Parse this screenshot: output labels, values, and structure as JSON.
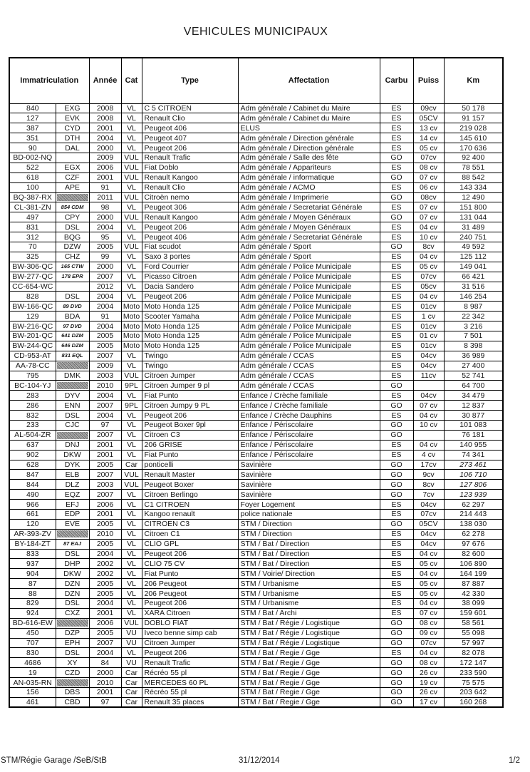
{
  "title": "VEHICULES MUNICIPAUX",
  "table": {
    "headers": [
      "Immatriculation",
      "Année",
      "Cat",
      "Type",
      "Affectation",
      "Carbu",
      "Puiss",
      "Km"
    ],
    "row_format": [
      "immatriculation",
      "old_plate_or_code",
      "annee",
      "cat",
      "type",
      "affectation",
      "carbu",
      "puiss",
      "km",
      "flags: old=small-italic-code, redact=grey-redaction-block, kmi=italic-km"
    ],
    "rows": [
      [
        "840",
        "EXG",
        "2008",
        "VL",
        "C 5 CITROEN",
        "Adm générale / Cabinet du Maire",
        "ES",
        "09cv",
        "50 178",
        ""
      ],
      [
        "127",
        "EVK",
        "2008",
        "VL",
        "Renault Clio",
        "Adm générale / Cabinet du Maire",
        "ES",
        "05CV",
        "91 157",
        ""
      ],
      [
        "387",
        "CYD",
        "2001",
        "VL",
        "Peugeot 406",
        "ELUS",
        "ES",
        "13 cv",
        "219 028",
        ""
      ],
      [
        "351",
        "DTH",
        "2004",
        "VL",
        "Peugeot 407",
        "Adm générale / Direction générale",
        "ES",
        "14 cv",
        "145 610",
        ""
      ],
      [
        "90",
        "DAL",
        "2000",
        "VL",
        "Peugeot 206",
        "Adm générale / Direction générale",
        "ES",
        "05 cv",
        "170 636",
        ""
      ],
      [
        "BD-002-NQ",
        "",
        "2009",
        "VUL",
        "Renault Trafic",
        "Adm générale / Salle des fête",
        "GO",
        "07cv",
        "92 400",
        ""
      ],
      [
        "522",
        "EGX",
        "2006",
        "VUL",
        "Fiat Doblo",
        "Adm générale / Appariteurs",
        "ES",
        "08 cv",
        "78 551",
        ""
      ],
      [
        "618",
        "CZF",
        "2001",
        "VUL",
        "Renault Kangoo",
        "Adm générale / informatique",
        "GO",
        "07 cv",
        "88 542",
        ""
      ],
      [
        "100",
        "APE",
        "91",
        "VL",
        "Renault Clio",
        "Adm générale / ACMO",
        "ES",
        "06 cv",
        "143 334",
        ""
      ],
      [
        "BQ-387-RX",
        "",
        "2011",
        "VUL",
        "Citroën nemo",
        "Adm générale / Imprimerie",
        "GO",
        "08cv",
        "12 490",
        "redact"
      ],
      [
        "CL-381-ZN",
        "854 CDM",
        "98",
        "VL",
        "Peugeot 306",
        "Adm générale / Secretariat Générale",
        "ES",
        "07 cv",
        "151 800",
        "old"
      ],
      [
        "497",
        "CPY",
        "2000",
        "VUL",
        "Renault Kangoo",
        "Adm générale / Moyen Généraux",
        "GO",
        "07 cv",
        "131 044",
        ""
      ],
      [
        "831",
        "DSL",
        "2004",
        "VL",
        "Peugeot 206",
        "Adm générale / Moyen Généraux",
        "ES",
        "04 cv",
        "31 489",
        ""
      ],
      [
        "312",
        "BQG",
        "95",
        "VL",
        "Peugeot 406",
        "Adm générale / Secretariat Générale",
        "ES",
        "10 cv",
        "240 751",
        ""
      ],
      [
        "70",
        "DZW",
        "2005",
        "VUL",
        "Fiat scudot",
        "Adm générale / Sport",
        "GO",
        "8cv",
        "49 592",
        ""
      ],
      [
        "325",
        "CHZ",
        "99",
        "VL",
        "Saxo 3 portes",
        "Adm générale / Sport",
        "ES",
        "04 cv",
        "125 112",
        ""
      ],
      [
        "BW-306-QC",
        "165 CTW",
        "2000",
        "VL",
        "Ford Courrier",
        "Adm générale / Police Municipale",
        "ES",
        "05 cv",
        "149 041",
        "old"
      ],
      [
        "BW-277-QC",
        "178 EPR",
        "2007",
        "VL",
        "Picasso Citroen",
        "Adm générale / Police Municipale",
        "ES",
        "07cv",
        "66 421",
        "old"
      ],
      [
        "CC-654-WC",
        "",
        "2012",
        "VL",
        "Dacia Sandero",
        "Adm générale / Police Municipale",
        "ES",
        "05cv",
        "31 516",
        ""
      ],
      [
        "828",
        "DSL",
        "2004",
        "VL",
        "Peugeot 206",
        "Adm générale / Police Municipale",
        "ES",
        "04 cv",
        "146 254",
        ""
      ],
      [
        "BW-166-QC",
        "89 DVD",
        "2004",
        "Moto",
        "Moto Honda 125",
        "Adm générale / Police Municipale",
        "ES",
        "01cv",
        "8 987",
        "old"
      ],
      [
        "129",
        "BDA",
        "91",
        "Moto",
        "Scooter Yamaha",
        "Adm générale / Police Municipale",
        "ES",
        "1 cv",
        "22 342",
        ""
      ],
      [
        "BW-216-QC",
        "97 DVD",
        "2004",
        "Moto",
        "Moto Honda 125",
        "Adm générale / Police Municipale",
        "ES",
        "01cv",
        "3 216",
        "old"
      ],
      [
        "BW-201-QC",
        "641 DZM",
        "2005",
        "Moto",
        "Moto Honda 125",
        "Adm générale / Police Municipale",
        "ES",
        "01 cv",
        "7 501",
        "old"
      ],
      [
        "BW-244-QC",
        "646 DZM",
        "2005",
        "Moto",
        "Moto Honda 125",
        "Adm générale / Police Municipale",
        "ES",
        "01cv",
        "8 398",
        "old"
      ],
      [
        "CD-953-AT",
        "831 EQL",
        "2007",
        "VL",
        "Twingo",
        "Adm générale / CCAS",
        "ES",
        "04cv",
        "36 989",
        "old"
      ],
      [
        "AA-78-CC",
        "",
        "2009",
        "VL",
        "Twingo",
        "Adm générale / CCAS",
        "ES",
        "04cv",
        "27 400",
        "redact"
      ],
      [
        "795",
        "DMK",
        "2003",
        "VUL",
        "Citroen Jumper",
        "Adm générale / CCAS",
        "ES",
        "11cv",
        "52 741",
        ""
      ],
      [
        "BC-104-YJ",
        "",
        "2010",
        "9PL",
        "Citroen Jumper 9 pl",
        "Adm générale / CCAS",
        "GO",
        "",
        "64 700",
        "redact"
      ],
      [
        "283",
        "DYV",
        "2004",
        "VL",
        "Fiat Punto",
        "Enfance / Crèche familiale",
        "ES",
        "04cv",
        "34 479",
        ""
      ],
      [
        "286",
        "ENN",
        "2007",
        "9PL",
        "Citroen Jumpy 9 PL",
        "Enfance / Crèche familiale",
        "GO",
        "07 cv",
        "12 837",
        ""
      ],
      [
        "832",
        "DSL",
        "2004",
        "VL",
        "Peugeot 206",
        "Enfance / Crèche  Dauphins",
        "ES",
        "04 cv",
        "30 877",
        ""
      ],
      [
        "233",
        "CJC",
        "97",
        "VL",
        "Peugeot Boxer 9pl",
        "Enfance / Périscolaire",
        "GO",
        "10 cv",
        "101 083",
        ""
      ],
      [
        "AL-504-ZR",
        "",
        "2007",
        "VL",
        "Citroen C3",
        "Enfance / Périscolaire",
        "GO",
        "",
        "76 181",
        "redact"
      ],
      [
        "637",
        "DNJ",
        "2001",
        "VL",
        "206 GRISE",
        "Enfance / Périscolaire",
        "ES",
        "04 cv",
        "140 955",
        ""
      ],
      [
        "902",
        "DKW",
        "2001",
        "VL",
        "Fiat Punto",
        "Enfance / Périscolaire",
        "ES",
        "4 cv",
        "74 341",
        ""
      ],
      [
        "628",
        "DYK",
        "2005",
        "Car",
        "ponticelli",
        "Savinière",
        "GO",
        "17cv",
        "273 461",
        "kmi"
      ],
      [
        "847",
        "ELB",
        "2007",
        "VUL",
        "Renault Master",
        "Savinière",
        "GO",
        "9cv",
        "106 710",
        "kmi"
      ],
      [
        "844",
        "DLZ",
        "2003",
        "VUL",
        "Peugeot Boxer",
        "Savinière",
        "GO",
        "8cv",
        "127 806",
        "kmi"
      ],
      [
        "490",
        "EQZ",
        "2007",
        "VL",
        "Citroen Berlingo",
        "Savinière",
        "GO",
        "7cv",
        "123 939",
        "kmi"
      ],
      [
        "966",
        "EFJ",
        "2006",
        "VL",
        "C1 CITROEN",
        "Foyer Logement",
        "ES",
        "04cv",
        "62 297",
        ""
      ],
      [
        "661",
        "EDP",
        "2001",
        "VL",
        "Kangoo renault",
        "police nationale",
        "ES",
        "07cv",
        "214 443",
        ""
      ],
      [
        "120",
        "EVE",
        "2005",
        "VL",
        "CITROEN C3",
        "STM / Direction",
        "GO",
        "05CV",
        "138 030",
        ""
      ],
      [
        "AR-393-ZV",
        "",
        "2010",
        "VL",
        "Citroen C1",
        "STM / Direction",
        "ES",
        "04cv",
        "62 278",
        "redact"
      ],
      [
        "BY-184-ZT",
        "87 EAJ",
        "2005",
        "VL",
        "CLIO GPL",
        "STM / Bat / Direction",
        "ES",
        "04cv",
        "97 676",
        "old"
      ],
      [
        "833",
        "DSL",
        "2004",
        "VL",
        "Peugeot 206",
        "STM / Bat / Direction",
        "ES",
        "04 cv",
        "82 600",
        ""
      ],
      [
        "937",
        "DHP",
        "2002",
        "VL",
        "CLIO 75 CV",
        "STM / Bat / Direction",
        "ES",
        "05 cv",
        "106 890",
        ""
      ],
      [
        "904",
        "DKW",
        "2002",
        "VL",
        "Fiat Punto",
        "STM / Voirie/ Direction",
        "ES",
        "04 cv",
        "164 199",
        ""
      ],
      [
        "87",
        "DZN",
        "2005",
        "VL",
        "206 Peugeot",
        "STM / Urbanisme",
        "ES",
        "05 cv",
        "87 887",
        ""
      ],
      [
        "88",
        "DZN",
        "2005",
        "VL",
        "206 Peugeot",
        "STM / Urbanisme",
        "ES",
        "05 cv",
        "42 330",
        ""
      ],
      [
        "829",
        "DSL",
        "2004",
        "VL",
        "Peugeot 206",
        "STM / Urbanisme",
        "ES",
        "04 cv",
        "38 099",
        ""
      ],
      [
        "924",
        "CXZ",
        "2001",
        "VL",
        "XARA Citroen",
        "STM / Bat / Archi",
        "ES",
        "07 cv",
        "159 601",
        ""
      ],
      [
        "BD-616-EW",
        "",
        "2006",
        "VUL",
        "DOBLO FIAT",
        "STM / Bat / Régie / Logistique",
        "GO",
        "08 cv",
        "58 561",
        "redact"
      ],
      [
        "450",
        "DZP",
        "2005",
        "VU",
        "Iveco benne simp cab",
        "STM / Bat / Régie / Logistique",
        "GO",
        "09 cv",
        "55 098",
        ""
      ],
      [
        "707",
        "EPH",
        "2007",
        "VU",
        "Citroen Jumper",
        "STM / Bat / Régie / Logistique",
        "GO",
        "07cv",
        "57 997",
        ""
      ],
      [
        "830",
        "DSL",
        "2004",
        "VL",
        "Peugeot 206",
        "STM / Bat / Regie / Gge",
        "ES",
        "04 cv",
        "82 078",
        ""
      ],
      [
        "4686",
        "XY",
        "84",
        "VU",
        "Renault Trafic",
        "STM / Bat / Regie / Gge",
        "GO",
        "08 cv",
        "172 147",
        ""
      ],
      [
        "19",
        "CZD",
        "2000",
        "Car",
        "Récréo 55 pl",
        "STM / Bat / Regie / Gge",
        "GO",
        "26 cv",
        "233 590",
        ""
      ],
      [
        "AN-035-RN",
        "",
        "2010",
        "Car",
        "MERCEDES 60 PL",
        "STM / Bat / Regie / Gge",
        "GO",
        "19 cv",
        "75 575",
        "redact"
      ],
      [
        "156",
        "DBS",
        "2001",
        "Car",
        "Récréo 55 pl",
        "STM / Bat / Regie / Gge",
        "GO",
        "26 cv",
        "203 642",
        ""
      ],
      [
        "461",
        "CBD",
        "97",
        "Car",
        "Renault 35 places",
        "STM / Bat / Regie / Gge",
        "GO",
        "17 cv",
        "160 268",
        ""
      ]
    ]
  },
  "footer": {
    "left": "STM/Régie Garage /SeB/StB",
    "center": "31/12/2014",
    "right": "1/2"
  },
  "colors": {
    "page_background": "#ffffff",
    "text": "#151515",
    "table_border": "#000000",
    "redaction_grey": "#bdbdbd"
  }
}
